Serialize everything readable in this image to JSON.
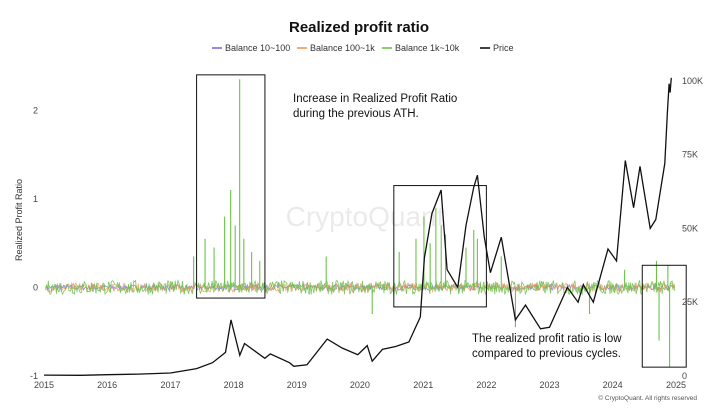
{
  "chart_data": {
    "type": "line",
    "title": "Realized profit ratio",
    "ylabel": "Realized Profit Ratio",
    "y2_label": "",
    "watermark": "CryptoQuant",
    "footer": "© CryptoQuant. All rights reserved",
    "x_ticks": [
      "2015",
      "2016",
      "2017",
      "2018",
      "2019",
      "2020",
      "2021",
      "2022",
      "2023",
      "2024",
      "2025"
    ],
    "y_ticks": [
      "-1",
      "0",
      "1",
      "2"
    ],
    "y2_ticks": [
      "0",
      "25K",
      "50K",
      "75K",
      "100K"
    ],
    "ylim": [
      -1,
      2.5
    ],
    "y2lim": [
      0,
      105000
    ],
    "xlim": [
      "2015-01-01",
      "2025-01-01"
    ],
    "legend_position": "top",
    "series": [
      {
        "name": "Balance 10~100",
        "color": "#7b6fe0",
        "axis": "left",
        "style": "noise",
        "amp": 0.03
      },
      {
        "name": "Balance 100~1k",
        "color": "#f0965a",
        "axis": "left",
        "style": "noise",
        "amp": 0.05
      },
      {
        "name": "Balance 1k~10k",
        "color": "#6cc24a",
        "axis": "left",
        "style": "noise",
        "amp": 0.08,
        "spikes": [
          {
            "x": "2017-05-15",
            "y": 0.35
          },
          {
            "x": "2017-07-20",
            "y": 0.55
          },
          {
            "x": "2017-09-10",
            "y": 0.45
          },
          {
            "x": "2017-11-10",
            "y": 0.8
          },
          {
            "x": "2017-12-15",
            "y": 1.1
          },
          {
            "x": "2018-01-10",
            "y": 0.7
          },
          {
            "x": "2018-02-05",
            "y": 2.35
          },
          {
            "x": "2018-03-01",
            "y": 0.55
          },
          {
            "x": "2018-04-15",
            "y": 0.4
          },
          {
            "x": "2018-06-01",
            "y": 0.3
          },
          {
            "x": "2019-06-20",
            "y": 0.35
          },
          {
            "x": "2020-08-15",
            "y": 0.4
          },
          {
            "x": "2020-11-20",
            "y": 0.55
          },
          {
            "x": "2021-01-05",
            "y": 0.8
          },
          {
            "x": "2021-02-10",
            "y": 0.5
          },
          {
            "x": "2021-03-15",
            "y": 0.9
          },
          {
            "x": "2021-04-15",
            "y": 0.7
          },
          {
            "x": "2021-05-10",
            "y": 0.6
          },
          {
            "x": "2021-09-05",
            "y": 0.45
          },
          {
            "x": "2021-10-20",
            "y": 0.65
          },
          {
            "x": "2021-11-10",
            "y": 0.55
          },
          {
            "x": "2022-03-28",
            "y": 0.35
          },
          {
            "x": "2024-03-10",
            "y": 0.2
          },
          {
            "x": "2024-09-10",
            "y": 0.3
          },
          {
            "x": "2024-11-15",
            "y": 0.25
          },
          {
            "x": "2024-11-25",
            "y": -0.9
          },
          {
            "x": "2024-09-25",
            "y": -0.6
          },
          {
            "x": "2022-06-18",
            "y": -0.45
          },
          {
            "x": "2023-08-20",
            "y": -0.3
          },
          {
            "x": "2020-03-12",
            "y": -0.3
          }
        ]
      },
      {
        "name": "Price",
        "color": "#111111",
        "axis": "right",
        "style": "line",
        "points": [
          {
            "x": "2015-01-01",
            "y": 300
          },
          {
            "x": "2015-08-01",
            "y": 250
          },
          {
            "x": "2016-01-01",
            "y": 430
          },
          {
            "x": "2016-07-01",
            "y": 650
          },
          {
            "x": "2017-01-01",
            "y": 1000
          },
          {
            "x": "2017-06-01",
            "y": 2500
          },
          {
            "x": "2017-09-01",
            "y": 4500
          },
          {
            "x": "2017-11-15",
            "y": 8000
          },
          {
            "x": "2017-12-17",
            "y": 19000
          },
          {
            "x": "2018-02-06",
            "y": 7000
          },
          {
            "x": "2018-03-05",
            "y": 11000
          },
          {
            "x": "2018-06-30",
            "y": 6000
          },
          {
            "x": "2018-08-01",
            "y": 7500
          },
          {
            "x": "2018-11-20",
            "y": 4500
          },
          {
            "x": "2018-12-15",
            "y": 3300
          },
          {
            "x": "2019-03-01",
            "y": 3800
          },
          {
            "x": "2019-06-26",
            "y": 12500
          },
          {
            "x": "2019-09-20",
            "y": 9500
          },
          {
            "x": "2019-12-20",
            "y": 7200
          },
          {
            "x": "2020-02-12",
            "y": 10300
          },
          {
            "x": "2020-03-12",
            "y": 5000
          },
          {
            "x": "2020-05-10",
            "y": 9000
          },
          {
            "x": "2020-07-25",
            "y": 10000
          },
          {
            "x": "2020-10-10",
            "y": 11500
          },
          {
            "x": "2020-12-15",
            "y": 20000
          },
          {
            "x": "2021-01-08",
            "y": 40000
          },
          {
            "x": "2021-02-20",
            "y": 55000
          },
          {
            "x": "2021-04-14",
            "y": 63000
          },
          {
            "x": "2021-05-19",
            "y": 36000
          },
          {
            "x": "2021-07-20",
            "y": 30000
          },
          {
            "x": "2021-09-05",
            "y": 51000
          },
          {
            "x": "2021-10-20",
            "y": 64000
          },
          {
            "x": "2021-11-10",
            "y": 68000
          },
          {
            "x": "2021-12-20",
            "y": 47000
          },
          {
            "x": "2022-01-24",
            "y": 35000
          },
          {
            "x": "2022-03-28",
            "y": 47000
          },
          {
            "x": "2022-06-18",
            "y": 19000
          },
          {
            "x": "2022-08-15",
            "y": 24000
          },
          {
            "x": "2022-11-10",
            "y": 16000
          },
          {
            "x": "2023-01-01",
            "y": 16500
          },
          {
            "x": "2023-04-14",
            "y": 30000
          },
          {
            "x": "2023-06-15",
            "y": 25000
          },
          {
            "x": "2023-07-15",
            "y": 31000
          },
          {
            "x": "2023-09-11",
            "y": 25000
          },
          {
            "x": "2023-12-05",
            "y": 43000
          },
          {
            "x": "2024-01-23",
            "y": 39000
          },
          {
            "x": "2024-03-14",
            "y": 73000
          },
          {
            "x": "2024-05-01",
            "y": 57000
          },
          {
            "x": "2024-06-07",
            "y": 71000
          },
          {
            "x": "2024-08-05",
            "y": 50000
          },
          {
            "x": "2024-09-06",
            "y": 53000
          },
          {
            "x": "2024-10-28",
            "y": 72000
          },
          {
            "x": "2024-11-13",
            "y": 90000
          },
          {
            "x": "2024-11-22",
            "y": 99000
          },
          {
            "x": "2024-11-28",
            "y": 96000
          },
          {
            "x": "2024-12-05",
            "y": 101000
          }
        ]
      }
    ],
    "annotations": [
      {
        "lines": [
          "Increase in Realized Profit Ratio",
          " during the previous ATH."
        ]
      },
      {
        "lines": [
          "The realized profit ratio is low",
          "compared to previous cycles."
        ]
      }
    ],
    "highlight_boxes": [
      {
        "x0": "2017-06-01",
        "x1": "2018-07-01",
        "y0": -0.12,
        "y1": 2.4
      },
      {
        "x0": "2020-07-15",
        "x1": "2022-01-01",
        "y0": -0.22,
        "y1": 1.15
      },
      {
        "x0": "2024-06-20",
        "x1": "2025-03-01",
        "y0": -0.9,
        "y1": 0.25
      }
    ]
  }
}
